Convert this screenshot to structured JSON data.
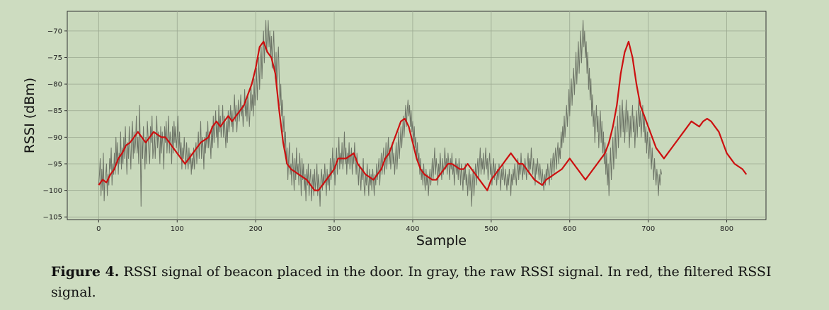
{
  "chart_data": {
    "type": "line",
    "xlabel": "Sample",
    "ylabel": "RSSI (dBm)",
    "xlim": [
      -40,
      850
    ],
    "ylim": [
      -105.5,
      -66.3
    ],
    "grid": true,
    "xticks": [
      0,
      100,
      200,
      300,
      400,
      500,
      600,
      700,
      800
    ],
    "yticks": [
      -70,
      -75,
      -80,
      -85,
      -90,
      -95,
      -100,
      -105
    ],
    "xtick_labels": [
      "0",
      "100",
      "200",
      "300",
      "400",
      "500",
      "600",
      "700",
      "800"
    ],
    "ytick_labels": [
      "−70",
      "−75",
      "−80",
      "−85",
      "−90",
      "−95",
      "−100",
      "−105"
    ],
    "series": [
      {
        "key": "raw",
        "color": "#6e7568",
        "x_start": 0,
        "x_step": 1,
        "values": [
          -99,
          -97,
          -94,
          -101,
          -96,
          -100,
          -93,
          -102,
          -98,
          -97,
          -95,
          -101,
          -97,
          -99,
          -94,
          -96,
          -92,
          -99,
          -95,
          -97,
          -93,
          -97,
          -90,
          -95,
          -91,
          -97,
          -93,
          -95,
          -89,
          -96,
          -92,
          -95,
          -90,
          -94,
          -88,
          -93,
          -97,
          -91,
          -94,
          -88,
          -92,
          -96,
          -90,
          -87,
          -94,
          -89,
          -93,
          -91,
          -86,
          -93,
          -90,
          -95,
          -84,
          -91,
          -103,
          -90,
          -94,
          -88,
          -92,
          -96,
          -90,
          -95,
          -87,
          -90,
          -93,
          -95,
          -88,
          -91,
          -86,
          -94,
          -92,
          -89,
          -94,
          -90,
          -86,
          -92,
          -89,
          -91,
          -95,
          -88,
          -93,
          -89,
          -92,
          -96,
          -88,
          -91,
          -87,
          -93,
          -90,
          -86,
          -93,
          -89,
          -91,
          -95,
          -88,
          -93,
          -87,
          -91,
          -88,
          -92,
          -90,
          -86,
          -93,
          -89,
          -94,
          -91,
          -96,
          -92,
          -94,
          -90,
          -93,
          -96,
          -91,
          -94,
          -96,
          -92,
          -95,
          -93,
          -97,
          -94,
          -96,
          -92,
          -96,
          -93,
          -91,
          -95,
          -92,
          -89,
          -94,
          -91,
          -87,
          -94,
          -90,
          -92,
          -96,
          -90,
          -93,
          -89,
          -92,
          -87,
          -92,
          -89,
          -91,
          -94,
          -88,
          -92,
          -86,
          -91,
          -88,
          -85,
          -90,
          -87,
          -92,
          -84,
          -89,
          -86,
          -90,
          -88,
          -84,
          -90,
          -86,
          -89,
          -92,
          -87,
          -91,
          -85,
          -89,
          -87,
          -84,
          -88,
          -85,
          -89,
          -86,
          -82,
          -87,
          -84,
          -89,
          -86,
          -83,
          -87,
          -85,
          -82,
          -86,
          -84,
          -88,
          -85,
          -81,
          -86,
          -83,
          -87,
          -82,
          -85,
          -88,
          -84,
          -80,
          -85,
          -82,
          -86,
          -79,
          -84,
          -81,
          -77,
          -83,
          -79,
          -75,
          -81,
          -76,
          -73,
          -79,
          -74,
          -70,
          -76,
          -72,
          -68,
          -74,
          -71,
          -68,
          -73,
          -70,
          -75,
          -71,
          -77,
          -73,
          -70,
          -76,
          -79,
          -74,
          -81,
          -76,
          -73,
          -79,
          -84,
          -80,
          -86,
          -83,
          -89,
          -86,
          -92,
          -89,
          -95,
          -92,
          -98,
          -94,
          -91,
          -97,
          -95,
          -99,
          -93,
          -96,
          -100,
          -94,
          -98,
          -92,
          -97,
          -95,
          -99,
          -93,
          -96,
          -101,
          -94,
          -98,
          -95,
          -100,
          -97,
          -102,
          -96,
          -99,
          -95,
          -101,
          -98,
          -96,
          -102,
          -99,
          -97,
          -101,
          -96,
          -100,
          -98,
          -95,
          -101,
          -97,
          -99,
          -103,
          -98,
          -96,
          -100,
          -97,
          -99,
          -95,
          -98,
          -101,
          -96,
          -99,
          -97,
          -100,
          -94,
          -98,
          -96,
          -92,
          -97,
          -94,
          -99,
          -95,
          -92,
          -97,
          -94,
          -90,
          -96,
          -93,
          -95,
          -91,
          -96,
          -94,
          -89,
          -95,
          -92,
          -97,
          -93,
          -95,
          -91,
          -96,
          -94,
          -92,
          -97,
          -93,
          -95,
          -91,
          -94,
          -97,
          -93,
          -96,
          -99,
          -95,
          -97,
          -100,
          -96,
          -98,
          -94,
          -99,
          -101,
          -97,
          -99,
          -95,
          -98,
          -101,
          -96,
          -99,
          -97,
          -100,
          -96,
          -98,
          -101,
          -97,
          -99,
          -95,
          -98,
          -96,
          -94,
          -99,
          -96,
          -93,
          -97,
          -94,
          -92,
          -97,
          -95,
          -91,
          -96,
          -93,
          -90,
          -95,
          -92,
          -96,
          -94,
          -91,
          -95,
          -93,
          -97,
          -94,
          -91,
          -96,
          -93,
          -89,
          -94,
          -91,
          -88,
          -92,
          -89,
          -86,
          -90,
          -87,
          -84,
          -88,
          -85,
          -83,
          -86,
          -84,
          -88,
          -85,
          -89,
          -87,
          -91,
          -88,
          -92,
          -90,
          -94,
          -91,
          -95,
          -93,
          -97,
          -94,
          -98,
          -96,
          -99,
          -95,
          -98,
          -100,
          -96,
          -99,
          -97,
          -101,
          -98,
          -96,
          -99,
          -97,
          -94,
          -98,
          -95,
          -92,
          -97,
          -94,
          -96,
          -99,
          -95,
          -97,
          -93,
          -96,
          -98,
          -94,
          -97,
          -95,
          -92,
          -96,
          -94,
          -97,
          -93,
          -95,
          -98,
          -94,
          -96,
          -93,
          -97,
          -95,
          -99,
          -96,
          -94,
          -97,
          -95,
          -98,
          -94,
          -96,
          -99,
          -95,
          -97,
          -100,
          -96,
          -98,
          -95,
          -99,
          -97,
          -101,
          -98,
          -96,
          -100,
          -97,
          -103,
          -99,
          -96,
          -101,
          -98,
          -95,
          -99,
          -96,
          -94,
          -98,
          -95,
          -92,
          -97,
          -94,
          -96,
          -93,
          -97,
          -95,
          -92,
          -96,
          -94,
          -98,
          -95,
          -93,
          -97,
          -95,
          -99,
          -96,
          -94,
          -98,
          -95,
          -97,
          -99,
          -96,
          -98,
          -95,
          -97,
          -100,
          -96,
          -98,
          -95,
          -97,
          -99,
          -96,
          -98,
          -100,
          -97,
          -99,
          -96,
          -98,
          -101,
          -97,
          -99,
          -96,
          -98,
          -95,
          -97,
          -99,
          -96,
          -94,
          -98,
          -95,
          -97,
          -93,
          -96,
          -98,
          -95,
          -97,
          -94,
          -96,
          -98,
          -95,
          -93,
          -97,
          -94,
          -96,
          -92,
          -95,
          -97,
          -94,
          -96,
          -99,
          -95,
          -97,
          -94,
          -96,
          -98,
          -95,
          -97,
          -99,
          -96,
          -98,
          -100,
          -97,
          -99,
          -96,
          -98,
          -95,
          -97,
          -99,
          -96,
          -94,
          -98,
          -95,
          -93,
          -97,
          -94,
          -92,
          -96,
          -93,
          -91,
          -95,
          -92,
          -94,
          -89,
          -92,
          -88,
          -91,
          -86,
          -90,
          -87,
          -84,
          -88,
          -85,
          -81,
          -86,
          -82,
          -79,
          -84,
          -80,
          -77,
          -82,
          -78,
          -74,
          -80,
          -76,
          -72,
          -78,
          -74,
          -70,
          -76,
          -72,
          -68,
          -73,
          -70,
          -75,
          -72,
          -78,
          -74,
          -81,
          -77,
          -83,
          -79,
          -86,
          -82,
          -88,
          -85,
          -91,
          -87,
          -84,
          -89,
          -86,
          -92,
          -88,
          -85,
          -91,
          -87,
          -93,
          -89,
          -95,
          -91,
          -97,
          -93,
          -99,
          -95,
          -101,
          -96,
          -92,
          -98,
          -94,
          -90,
          -96,
          -92,
          -88,
          -94,
          -90,
          -86,
          -92,
          -88,
          -84,
          -90,
          -86,
          -83,
          -89,
          -85,
          -91,
          -87,
          -83,
          -89,
          -85,
          -88,
          -92,
          -86,
          -90,
          -87,
          -84,
          -89,
          -86,
          -92,
          -88,
          -85,
          -90,
          -86,
          -83,
          -88,
          -85,
          -90,
          -87,
          -84,
          -89,
          -86,
          -91,
          -88,
          -93,
          -89,
          -92,
          -94,
          -90,
          -93,
          -96,
          -92,
          -95,
          -98,
          -94,
          -97,
          -99,
          -96,
          -98,
          -101,
          -97,
          -99,
          -96,
          -97
        ]
      },
      {
        "key": "filtered",
        "color": "#cc1010",
        "x_start": 0,
        "x_step": 5,
        "values": [
          -99,
          -98,
          -98.5,
          -97,
          -96,
          -94,
          -93,
          -91.5,
          -91,
          -90,
          -89,
          -90,
          -91,
          -90,
          -89,
          -89.5,
          -90,
          -90,
          -91,
          -92,
          -93,
          -94,
          -95,
          -94,
          -93,
          -92,
          -91,
          -90.5,
          -90,
          -88,
          -87,
          -88,
          -87,
          -86,
          -87,
          -86,
          -85,
          -84,
          -82,
          -80,
          -77,
          -73,
          -72,
          -74,
          -75,
          -78,
          -85,
          -91,
          -95,
          -96,
          -96.5,
          -97,
          -97.5,
          -98,
          -99,
          -100,
          -100,
          -99,
          -98,
          -97,
          -96,
          -94,
          -94,
          -94,
          -93.5,
          -93,
          -95,
          -96,
          -97,
          -97.5,
          -98,
          -97,
          -96,
          -94,
          -93,
          -91,
          -89,
          -87,
          -86.5,
          -88,
          -91,
          -94,
          -96,
          -97,
          -97.5,
          -98,
          -98,
          -97,
          -96,
          -95,
          -95,
          -95.5,
          -96,
          -96,
          -95,
          -96,
          -97,
          -98,
          -99,
          -100,
          -98,
          -97,
          -96,
          -95,
          -94,
          -93,
          -94,
          -95,
          -95,
          -96,
          -97,
          -98,
          -98.5,
          -99,
          -98,
          -97.5,
          -97,
          -96.5,
          -96,
          -95,
          -94,
          -95,
          -96,
          -97,
          -98,
          -97,
          -96,
          -95,
          -94,
          -93,
          -91,
          -88,
          -84,
          -78,
          -74,
          -72,
          -75,
          -80,
          -84,
          -86,
          -88,
          -90,
          -92,
          -93,
          -94,
          -93,
          -92,
          -91,
          -90,
          -89,
          -88,
          -87,
          -87.5,
          -88,
          -87,
          -86.5,
          -87,
          -88,
          -89,
          -91,
          -93,
          -94,
          -95,
          -95.5,
          -96,
          -97
        ]
      }
    ]
  },
  "caption": {
    "label": "Figure 4.",
    "text": "RSSI signal of beacon placed in the door.  In gray, the raw RSSI signal.  In red, the filtered RSSI signal."
  }
}
